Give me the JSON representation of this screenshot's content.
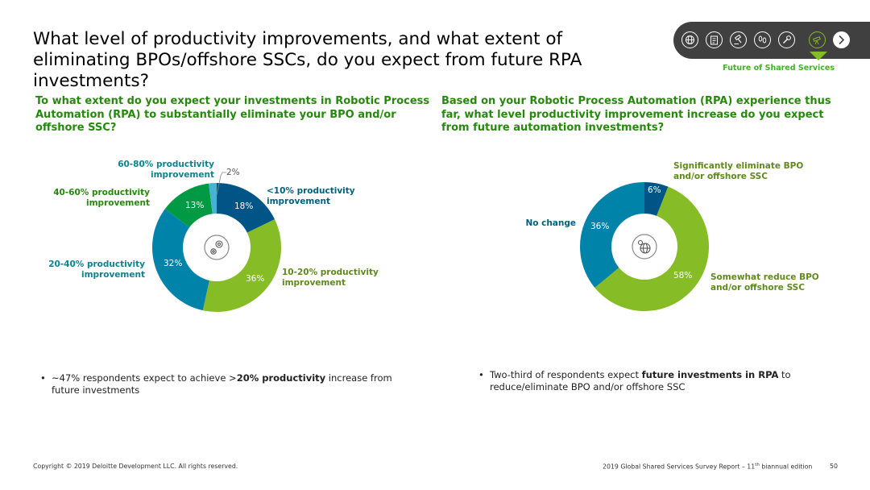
{
  "title": "What level of productivity improvements, and what extent of eliminating BPOs/offshore SSCs, do you expect from future RPA investments?",
  "nav": {
    "icons": [
      "globe-icon",
      "clipboard-icon",
      "gavel-icon",
      "footprints-icon",
      "wrench-icon",
      "telescope-icon"
    ],
    "active_icon": "telescope-icon",
    "section_label": "Future of Shared Services"
  },
  "left": {
    "question": "To what extent do you expect your investments in Robotic Process Automation (RPA) to substantially eliminate your BPO and/or offshore SSC?",
    "bullet_pre": "~47% respondents expect to achieve >",
    "bullet_bold": "20% productivity",
    "bullet_post": " increase from future investments"
  },
  "right": {
    "question": "Based on your Robotic Process Automation (RPA) experience thus far, what level productivity improvement increase do you expect from future automation investments?",
    "bullet_pre": "Two-third of respondents expect ",
    "bullet_bold": "future investments in RPA",
    "bullet_post": " to reduce/eliminate BPO and/or offshore SSC"
  },
  "chart_data": [
    {
      "type": "pie",
      "title": "",
      "categories": [
        "<10% productivity improvement",
        "10-20% productivity improvement",
        "20-40% productivity improvement",
        "40-60% productivity improvement",
        "60-80% productivity improvement"
      ],
      "values": [
        18,
        36,
        32,
        13,
        2
      ],
      "value_labels": [
        "18%",
        "36%",
        "32%",
        "13%",
        "2%"
      ],
      "colors": [
        "#005587",
        "#86bc25",
        "#0083a9",
        "#009a44",
        "#46b3d4"
      ],
      "center_icon": "gears-icon"
    },
    {
      "type": "pie",
      "title": "",
      "categories": [
        "Significantly eliminate BPO and/or offshore SSC",
        "Somewhat reduce BPO and/or offshore SSC",
        "No change"
      ],
      "values": [
        6,
        58,
        36
      ],
      "value_labels": [
        "6%",
        "58%",
        "36%"
      ],
      "colors": [
        "#005587",
        "#86bc25",
        "#0083a9"
      ],
      "center_icon": "globe-gear-icon"
    }
  ],
  "footer": {
    "copyright": "Copyright © 2019 Deloitte Development LLC. All rights reserved.",
    "report_pre": "2019 Global Shared Services Survey Report – 11",
    "report_sup": "th",
    "report_post": " biannual edition",
    "page": "50"
  }
}
